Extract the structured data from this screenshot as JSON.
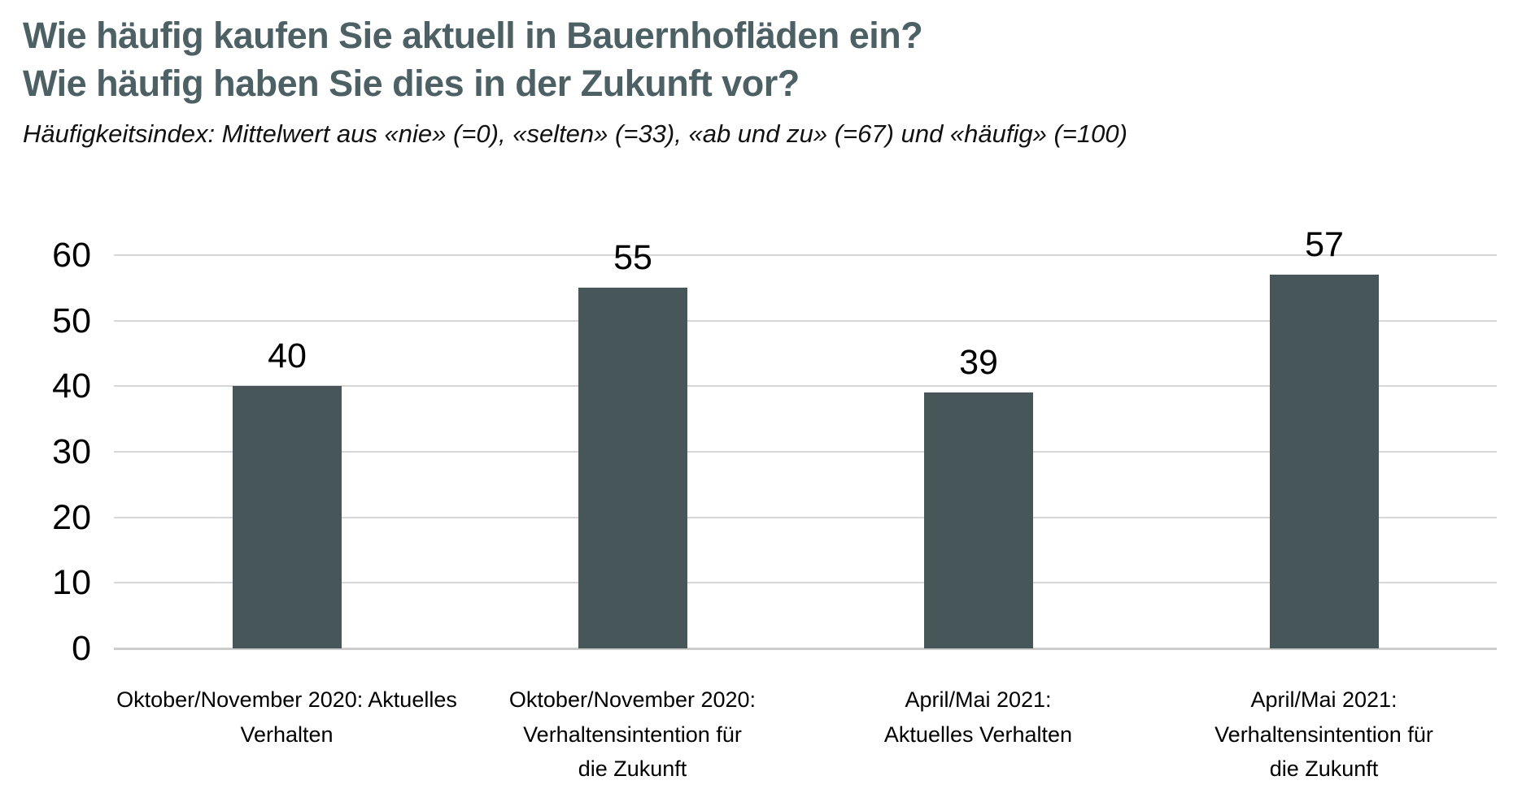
{
  "header": {
    "title_line1": "Wie häufig kaufen Sie aktuell in Bauernhofläden ein?",
    "title_line2": "Wie häufig haben Sie dies in der Zukunft vor?",
    "subtitle": "Häufigkeitsindex: Mittelwert aus «nie» (=0), «selten» (=33), «ab und zu» (=67) und «häufig» (=100)"
  },
  "colors": {
    "title": "#4d6165",
    "bar": "#475659",
    "gridline": "#d6d6d6",
    "baseline": "#cccccc",
    "text": "#000000",
    "background": "#ffffff"
  },
  "chart_data": {
    "type": "bar",
    "title": "Wie häufig kaufen Sie aktuell in Bauernhofläden ein? Wie häufig haben Sie dies in der Zukunft vor?",
    "subtitle": "Häufigkeitsindex: Mittelwert aus «nie» (=0), «selten» (=33), «ab und zu» (=67) und «häufig» (=100)",
    "categories": [
      {
        "label": "Oktober/November 2020: Aktuelles Verhalten",
        "lines": [
          "Oktober/November 2020: Aktuelles",
          "Verhalten"
        ]
      },
      {
        "label": "Oktober/November 2020: Verhaltensintention für die Zukunft",
        "lines": [
          "Oktober/November 2020:",
          "Verhaltensintention für",
          "die Zukunft"
        ]
      },
      {
        "label": "April/Mai 2021: Aktuelles Verhalten",
        "lines": [
          "April/Mai 2021:",
          "Aktuelles Verhalten"
        ]
      },
      {
        "label": "April/Mai 2021: Verhaltensintention für die Zukunft",
        "lines": [
          "April/Mai 2021:",
          "Verhaltensintention für",
          "die Zukunft"
        ]
      }
    ],
    "values": [
      40,
      55,
      39,
      57
    ],
    "value_labels": [
      "40",
      "55",
      "39",
      "57"
    ],
    "xlabel": "",
    "ylabel": "",
    "ylim": [
      0,
      60
    ],
    "yticks": [
      0,
      10,
      20,
      30,
      40,
      50,
      60
    ],
    "grid": true,
    "legend": "none",
    "bar_color": "#475659"
  }
}
